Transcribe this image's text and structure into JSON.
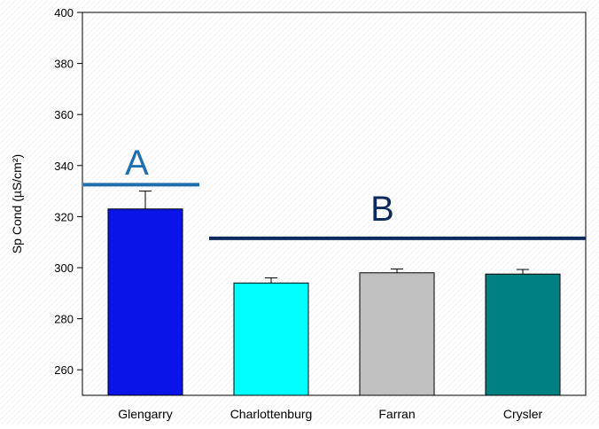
{
  "chart_data": {
    "type": "bar",
    "title": "",
    "xlabel": "",
    "ylabel": "Sp Cond (µS/cm²)",
    "ylim": [
      250,
      400
    ],
    "yticks": [
      260,
      280,
      300,
      320,
      340,
      360,
      380,
      400
    ],
    "categories": [
      "Glengarry",
      "Charlottenburg",
      "Farran",
      "Crysler"
    ],
    "values": [
      323,
      294,
      298,
      297.5
    ],
    "errors": [
      7,
      2,
      1.5,
      1.8
    ],
    "colors": [
      "#0a14e8",
      "#00ffff",
      "#c0c0c0",
      "#008080"
    ],
    "grid": false,
    "annotations": [
      {
        "text": "A",
        "color": "#1f6fb0",
        "line_color": "#1f6fb0",
        "group_from": 0,
        "group_to": 0,
        "line_y": 332.5,
        "text_y": 342
      },
      {
        "text": "B",
        "color": "#0d2a5e",
        "line_color": "#0d2a5e",
        "group_from": 1,
        "group_to": 3,
        "line_y": 311.5,
        "text_y": 324
      }
    ]
  }
}
